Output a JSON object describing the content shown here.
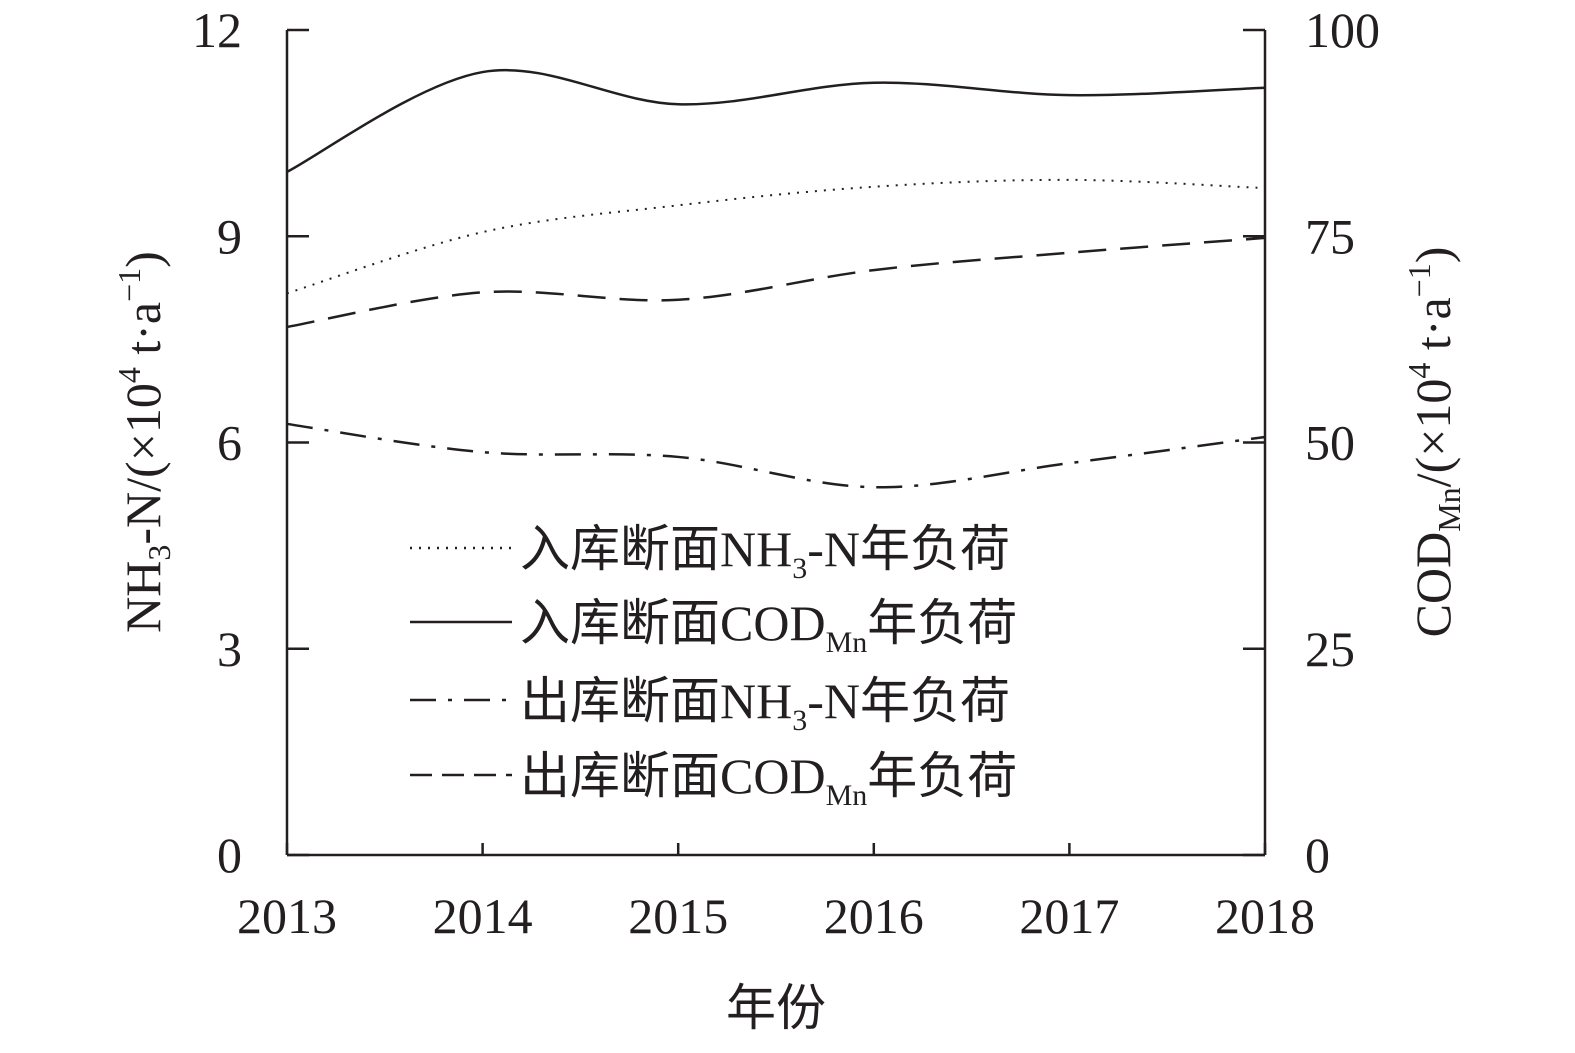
{
  "chart_data": {
    "type": "line",
    "x": [
      2013,
      2014,
      2015,
      2016,
      2017,
      2018
    ],
    "xlabel": "年份",
    "ylabel": {
      "main": "NH",
      "sub": "3",
      "rest": "-N/(×10",
      "sup": "4",
      "rest2": " t·a",
      "sup2": "−1",
      "end": ")"
    },
    "ylabel_right": {
      "main": "COD",
      "sub": "Mn",
      "rest": "/(×10",
      "sup": "4",
      "rest2": " t·a",
      "sup2": "−1",
      "end": ")"
    },
    "xlim": [
      2013,
      2018
    ],
    "ylim": [
      0,
      12
    ],
    "ylim_right": [
      0,
      100
    ],
    "xticks": [
      "2013",
      "2014",
      "2015",
      "2016",
      "2017",
      "2018"
    ],
    "yticks": [
      "0",
      "3",
      "6",
      "9",
      "12"
    ],
    "yticks_right": [
      "0",
      "25",
      "50",
      "75",
      "100"
    ],
    "legend_position": "center-left",
    "series": [
      {
        "name": "入库断面NH3-N年负荷",
        "axis": "left",
        "style": "dotted",
        "values": [
          8.17,
          9.06,
          9.45,
          9.72,
          9.82,
          9.7
        ],
        "label": {
          "a": "入库断面NH",
          "sub": "3",
          "b": "-N年负荷"
        }
      },
      {
        "name": "入库断面CODMn年负荷",
        "axis": "right",
        "style": "solid",
        "values": [
          82.8,
          94.9,
          91.0,
          93.6,
          92.1,
          93.0
        ],
        "label": {
          "a": "入库断面COD",
          "sub": "Mn",
          "b": "年负荷"
        }
      },
      {
        "name": "出库断面NH3-N年负荷",
        "axis": "left",
        "style": "dashdot",
        "values": [
          6.27,
          5.86,
          5.79,
          5.35,
          5.7,
          6.08
        ],
        "label": {
          "a": "出库断面NH",
          "sub": "3",
          "b": "-N年负荷"
        }
      },
      {
        "name": "出库断面CODMn年负荷",
        "axis": "right",
        "style": "dashed",
        "values": [
          64.0,
          68.2,
          67.3,
          70.9,
          73.0,
          74.8
        ],
        "label": {
          "a": "出库断面COD",
          "sub": "Mn",
          "b": "年负荷"
        }
      }
    ],
    "colors": {
      "line": "#231f20"
    }
  }
}
